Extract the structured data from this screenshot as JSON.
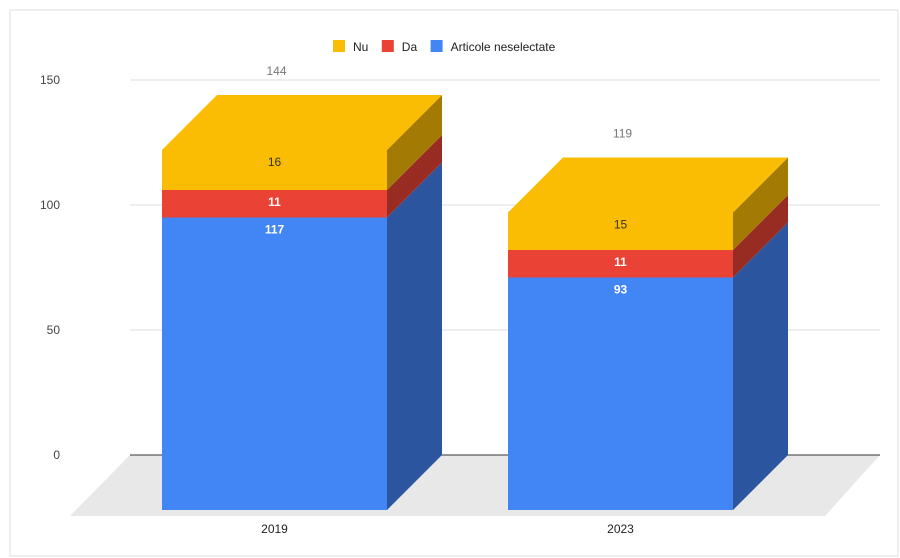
{
  "chart_data": {
    "type": "bar",
    "stacked": true,
    "three_d": true,
    "categories": [
      "2019",
      "2023"
    ],
    "series": [
      {
        "name": "Articole neselectate",
        "values": [
          117,
          93
        ],
        "color": "#4285F4",
        "label_color": "#ffffff"
      },
      {
        "name": "Da",
        "values": [
          11,
          11
        ],
        "color": "#EA4335",
        "label_color": "#ffffff"
      },
      {
        "name": "Nu",
        "values": [
          16,
          15
        ],
        "color": "#FBBC04",
        "label_color": "#333333"
      }
    ],
    "legend_order": [
      "Nu",
      "Da",
      "Articole neselectate"
    ],
    "totals": [
      "144",
      "119"
    ],
    "yticks": [
      0,
      50,
      100,
      150
    ],
    "ylim": [
      0,
      150
    ],
    "grid": true,
    "legend": "top-center",
    "title": "",
    "xlabel": "",
    "ylabel": ""
  }
}
